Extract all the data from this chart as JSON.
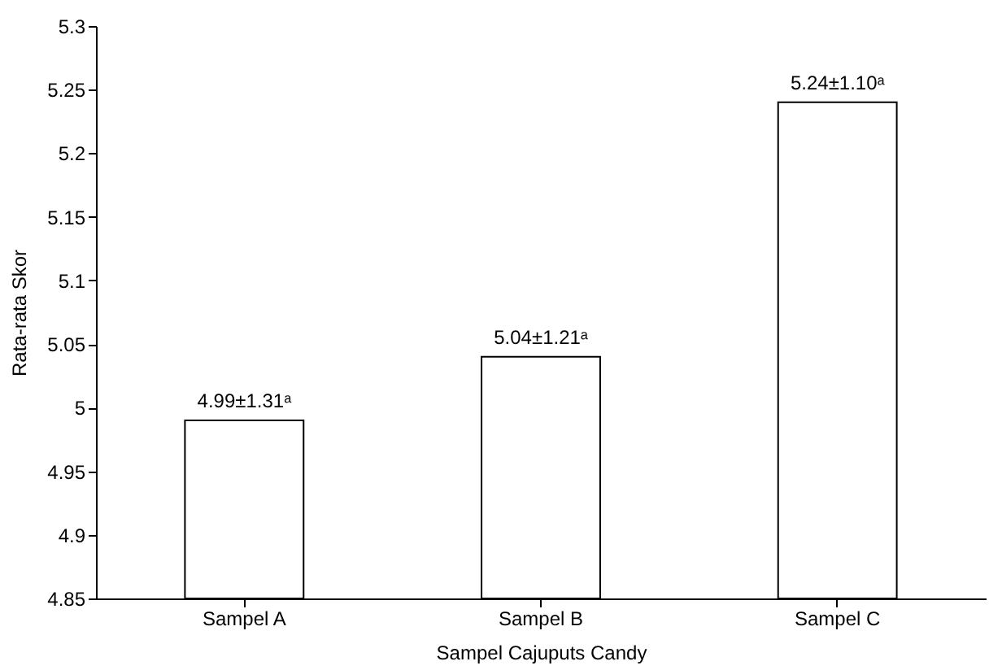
{
  "chart_data": {
    "type": "bar",
    "xlabel": "Sampel Cajuputs Candy",
    "ylabel": "Rata-rata Skor",
    "categories": [
      "Sampel A",
      "Sampel B",
      "Sampel C"
    ],
    "values": [
      4.99,
      5.04,
      5.24
    ],
    "value_labels": [
      "4.99±1.31ᵃ",
      "5.04±1.21ᵃ",
      "5.24±1.10ᵃ"
    ],
    "color": "#ffffff",
    "ylim": [
      4.85,
      5.3
    ],
    "yticks": [
      4.85,
      4.9,
      4.95,
      5,
      5.05,
      5.1,
      5.15,
      5.2,
      5.25,
      5.3
    ],
    "grid": false
  }
}
